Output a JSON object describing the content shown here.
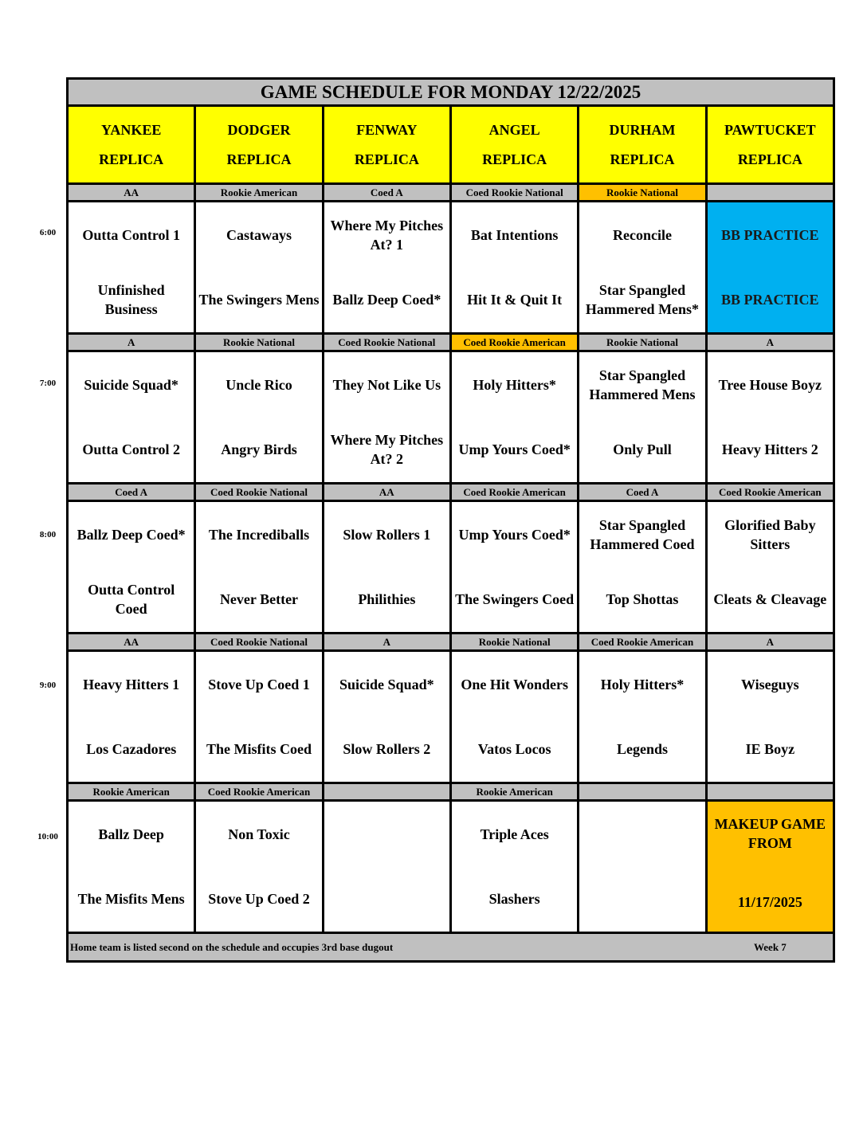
{
  "title": "GAME SCHEDULE FOR MONDAY 12/22/2025",
  "fields": [
    {
      "name": "YANKEE",
      "sub": "REPLICA"
    },
    {
      "name": "DODGER",
      "sub": "REPLICA"
    },
    {
      "name": "FENWAY",
      "sub": "REPLICA"
    },
    {
      "name": "ANGEL",
      "sub": "REPLICA"
    },
    {
      "name": "DURHAM",
      "sub": "REPLICA"
    },
    {
      "name": "PAWTUCKET",
      "sub": "REPLICA"
    }
  ],
  "colors": {
    "header": "#FFFF00",
    "division": "#C0C0C0",
    "highlight": "#FFC000",
    "practice": "#00B0F0"
  },
  "slots": [
    {
      "time": "6:00",
      "divisions": [
        {
          "label": "AA"
        },
        {
          "label": "Rookie American"
        },
        {
          "label": "Coed A"
        },
        {
          "label": "Coed Rookie National"
        },
        {
          "label": "Rookie National",
          "highlight": true
        },
        {
          "label": ""
        }
      ],
      "games": [
        {
          "away": "Outta Control 1",
          "home": "Unfinished Business"
        },
        {
          "away": "Castaways",
          "home": "The Swingers Mens"
        },
        {
          "away": "Where My Pitches At? 1",
          "home": "Ballz Deep Coed*"
        },
        {
          "away": "Bat Intentions",
          "home": "Hit It & Quit It"
        },
        {
          "away": "Reconcile",
          "home": "Star Spangled Hammered Mens*"
        },
        {
          "away": "BB PRACTICE",
          "home": "BB PRACTICE",
          "color": "practice"
        }
      ]
    },
    {
      "time": "7:00",
      "divisions": [
        {
          "label": "A"
        },
        {
          "label": "Rookie National"
        },
        {
          "label": "Coed Rookie National"
        },
        {
          "label": "Coed Rookie American",
          "highlight": true
        },
        {
          "label": "Rookie National"
        },
        {
          "label": "A"
        }
      ],
      "games": [
        {
          "away": "Suicide Squad*",
          "home": "Outta Control 2"
        },
        {
          "away": "Uncle Rico",
          "home": "Angry Birds"
        },
        {
          "away": "They Not Like Us",
          "home": "Where My Pitches At? 2"
        },
        {
          "away": "Holy Hitters*",
          "home": "Ump Yours Coed*"
        },
        {
          "away": "Star Spangled Hammered Mens",
          "home": "Only Pull"
        },
        {
          "away": "Tree House Boyz",
          "home": "Heavy Hitters 2"
        }
      ]
    },
    {
      "time": "8:00",
      "divisions": [
        {
          "label": "Coed A"
        },
        {
          "label": "Coed Rookie National"
        },
        {
          "label": "AA"
        },
        {
          "label": "Coed Rookie American"
        },
        {
          "label": "Coed A"
        },
        {
          "label": "Coed Rookie American"
        }
      ],
      "games": [
        {
          "away": "Ballz Deep Coed*",
          "home": "Outta Control Coed"
        },
        {
          "away": "The Incrediballs",
          "home": "Never Better"
        },
        {
          "away": "Slow Rollers 1",
          "home": "Philithies"
        },
        {
          "away": "Ump Yours Coed*",
          "home": "The Swingers Coed"
        },
        {
          "away": "Star Spangled Hammered Coed",
          "home": "Top Shottas"
        },
        {
          "away": "Glorified Baby Sitters",
          "home": "Cleats & Cleavage"
        }
      ]
    },
    {
      "time": "9:00",
      "divisions": [
        {
          "label": "AA"
        },
        {
          "label": "Coed Rookie National"
        },
        {
          "label": "A"
        },
        {
          "label": "Rookie National"
        },
        {
          "label": "Coed Rookie American"
        },
        {
          "label": "A"
        }
      ],
      "games": [
        {
          "away": "Heavy Hitters 1",
          "home": "Los Cazadores"
        },
        {
          "away": "Stove Up Coed 1",
          "home": "The Misfits Coed"
        },
        {
          "away": "Suicide Squad*",
          "home": "Slow Rollers 2"
        },
        {
          "away": "One Hit Wonders",
          "home": "Vatos Locos"
        },
        {
          "away": "Holy Hitters*",
          "home": "Legends"
        },
        {
          "away": "Wiseguys",
          "home": "IE Boyz"
        }
      ]
    },
    {
      "time": "10:00",
      "divisions": [
        {
          "label": "Rookie American"
        },
        {
          "label": "Coed Rookie American"
        },
        {
          "label": ""
        },
        {
          "label": "Rookie American"
        },
        {
          "label": ""
        },
        {
          "label": ""
        }
      ],
      "games": [
        {
          "away": "Ballz Deep",
          "home": "The Misfits Mens"
        },
        {
          "away": "Non Toxic",
          "home": "Stove Up Coed 2"
        },
        {
          "away": "",
          "home": ""
        },
        {
          "away": "Triple Aces",
          "home": "Slashers"
        },
        {
          "away": "",
          "home": ""
        },
        {
          "away": "MAKEUP GAME FROM",
          "home": "11/17/2025",
          "color": "highlight"
        }
      ]
    }
  ],
  "footer": {
    "note": "Home team is listed second on the schedule and occupies 3rd base dugout",
    "week": "Week 7"
  }
}
